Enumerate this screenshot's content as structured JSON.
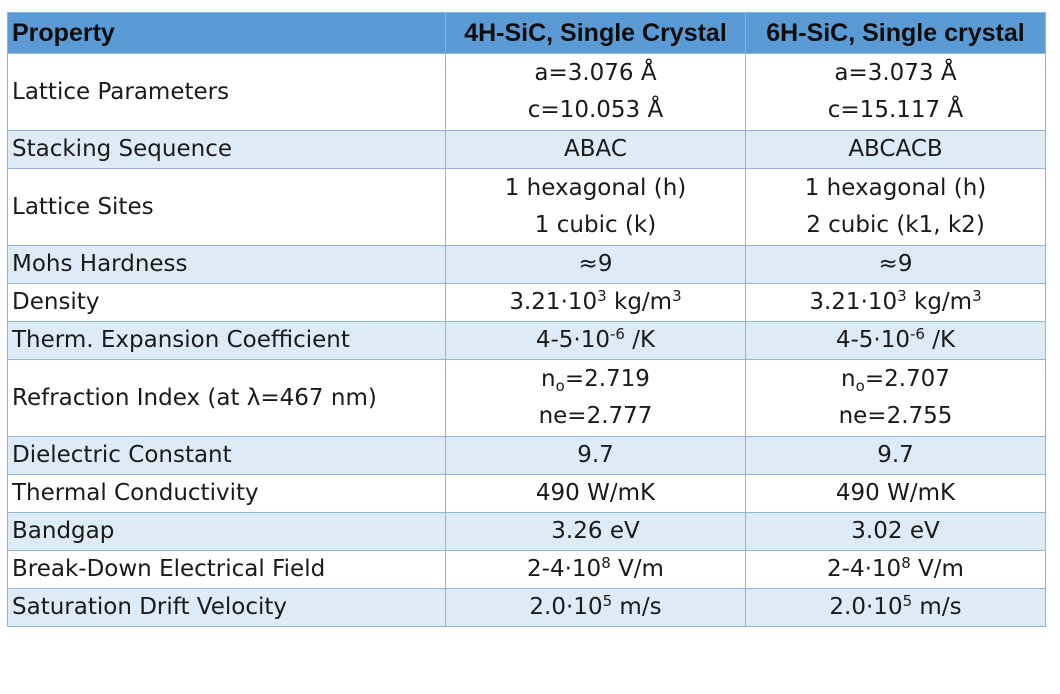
{
  "header": {
    "property": "Property",
    "col_4h": "4H-SiC, Single Crystal",
    "col_6h": "6H-SiC, Single crystal"
  },
  "rows": [
    {
      "property": "Lattice Parameters",
      "v4h_1": "a=3.076 Å",
      "v4h_2": "c=10.053 Å",
      "v6h_1": "a=3.073 Å",
      "v6h_2": "c=15.117 Å"
    },
    {
      "property": "Stacking Sequence",
      "v4h": "ABAC",
      "v6h": "ABCACB"
    },
    {
      "property": "Lattice Sites",
      "v4h_1": "1 hexagonal (h)",
      "v4h_2": "1 cubic (k)",
      "v6h_1": "1 hexagonal (h)",
      "v6h_2": "2 cubic (k1, k2)"
    },
    {
      "property": "Mohs Hardness",
      "v4h": "≈9",
      "v6h": "≈9"
    },
    {
      "property": "Density",
      "v4h_base": "3.21·10",
      "v4h_exp": "3",
      "v4h_unit": " kg/m",
      "v4h_unit_exp": "3",
      "v6h_base": "3.21·10",
      "v6h_exp": "3",
      "v6h_unit": " kg/m",
      "v6h_unit_exp": "3"
    },
    {
      "property": "Therm. Expansion Coefficient",
      "v4h_base": "4-5·10",
      "v4h_exp": "-6",
      "v4h_unit": " /K",
      "v6h_base": "4-5·10",
      "v6h_exp": "-6",
      "v6h_unit": " /K"
    },
    {
      "property": "Refraction Index (at λ=467 nm)",
      "v4h_1_pre": "n",
      "v4h_1_sub": "o",
      "v4h_1_post": "=2.719",
      "v4h_2": "ne=2.777",
      "v6h_1_pre": "n",
      "v6h_1_sub": "o",
      "v6h_1_post": "=2.707",
      "v6h_2": "ne=2.755"
    },
    {
      "property": "Dielectric Constant",
      "v4h": "9.7",
      "v6h": "9.7"
    },
    {
      "property": "Thermal Conductivity",
      "v4h": "490 W/mK",
      "v6h": "490 W/mK"
    },
    {
      "property": "Bandgap",
      "v4h": "3.26 eV",
      "v6h": "3.02 eV"
    },
    {
      "property": "Break-Down Electrical Field",
      "v4h_base": "2-4·10",
      "v4h_exp": "8",
      "v4h_unit": " V/m",
      "v6h_base": "2-4·10",
      "v6h_exp": "8",
      "v6h_unit": " V/m"
    },
    {
      "property": "Saturation Drift Velocity",
      "v4h_base": "2.0·10",
      "v4h_exp": "5",
      "v4h_unit": " m/s",
      "v6h_base": "2.0·10",
      "v6h_exp": "5",
      "v6h_unit": " m/s"
    }
  ],
  "colors": {
    "header_bg": "#5b9bd5",
    "shade_bg": "#ddebf7",
    "border": "#8fb4dd"
  }
}
